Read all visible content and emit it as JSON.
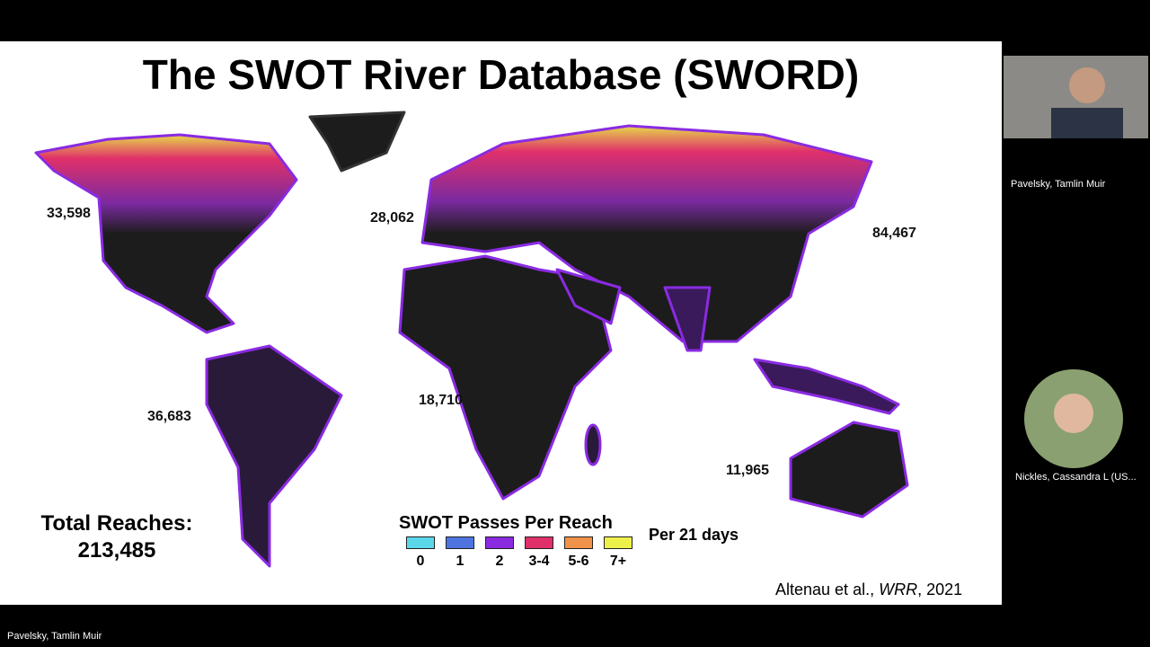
{
  "slide": {
    "title": "The SWOT River Database (SWORD)",
    "region_counts": [
      "33,598",
      "28,062",
      "84,467",
      "36,683",
      "18,710",
      "11,965"
    ],
    "total": {
      "label": "Total Reaches:",
      "value": "213,485"
    },
    "legend": {
      "title": "SWOT Passes Per Reach",
      "period": "Per 21 days",
      "items": [
        {
          "label": "0",
          "color": "#5ad8ea"
        },
        {
          "label": "1",
          "color": "#4f74e0"
        },
        {
          "label": "2",
          "color": "#8a2be2"
        },
        {
          "label": "3-4",
          "color": "#e0306a"
        },
        {
          "label": "5-6",
          "color": "#f0924a"
        },
        {
          "label": "7+",
          "color": "#eef04a"
        }
      ]
    },
    "citation": {
      "authors": "Altenau et al., ",
      "journal": "WRR",
      "year": ", 2021"
    }
  },
  "participants": [
    {
      "name": "Pavelsky, Tamlin Muir"
    },
    {
      "name": "Nickles, Cassandra L (US..."
    }
  ],
  "footer": {
    "speaker": "Pavelsky, Tamlin Muir"
  }
}
